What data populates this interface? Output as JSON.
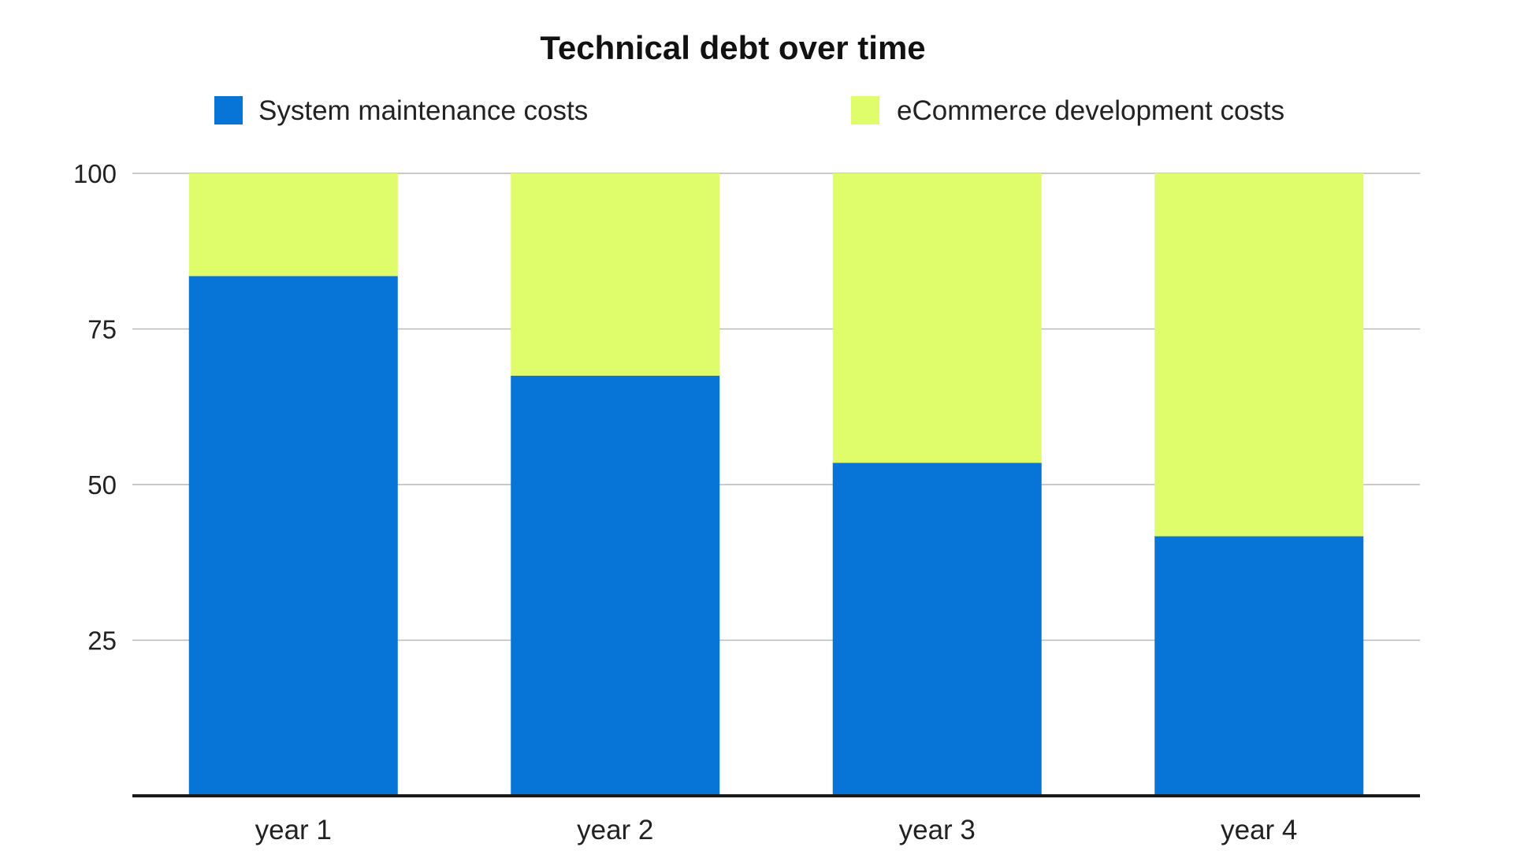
{
  "chart_data": {
    "type": "bar",
    "stacked": true,
    "title": "Technical debt over time",
    "xlabel": "",
    "ylabel": "",
    "categories": [
      "year 1",
      "year 2",
      "year 3",
      "year 4"
    ],
    "series": [
      {
        "name": "System maintenance costs",
        "color": "#0774d8",
        "values": [
          83.5,
          67.5,
          53.5,
          41.7
        ]
      },
      {
        "name": "eCommerce development costs",
        "color": "#dffc6a",
        "values": [
          16.5,
          32.5,
          46.5,
          58.3
        ]
      }
    ],
    "ylim": [
      0,
      100
    ],
    "yticks": [
      {
        "value": 100,
        "label": "100"
      },
      {
        "value": 75,
        "label": "75"
      },
      {
        "value": 50,
        "label": "50"
      },
      {
        "value": 25,
        "label": "25"
      }
    ],
    "grid": true,
    "legend_position": "top"
  }
}
